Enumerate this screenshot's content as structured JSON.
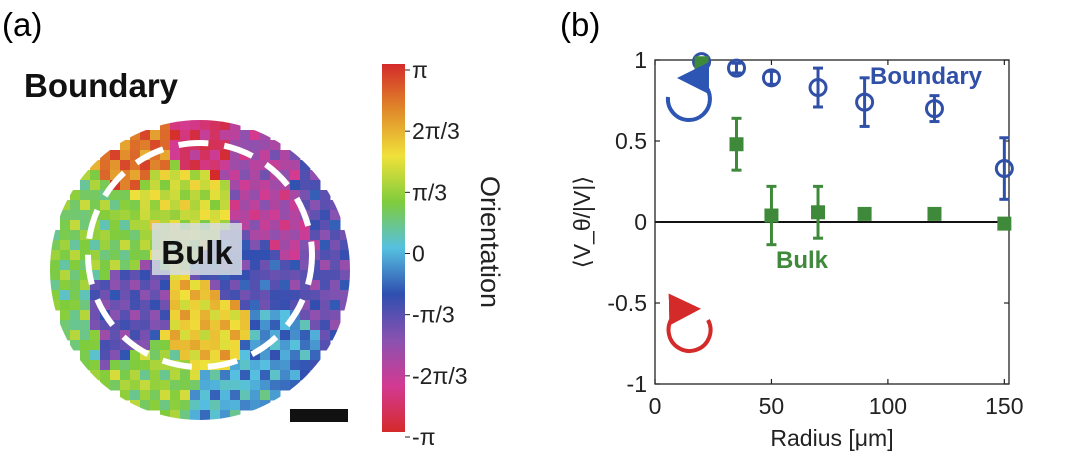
{
  "colors": {
    "boundary": "#3050a8",
    "bulk": "#3f8a3a",
    "zero_line": "#111111",
    "scale_bar": "#111111",
    "ccw_arrow": "#2c55b4",
    "cw_arrow": "#d42a2a",
    "dashed_circle": "#ffffff",
    "colormap_stops": [
      "#d42a2a",
      "#e08a2a",
      "#f0e13a",
      "#7fcc3c",
      "#56c0e0",
      "#2f4fb0",
      "#8a52b0",
      "#d33a92",
      "#d42a2a"
    ]
  },
  "panel_a": {
    "label": "(a)",
    "boundary_label": "Boundary",
    "bulk_label": "Bulk",
    "colorbar": {
      "title": "Orientation",
      "ticks": [
        "π",
        "2π/3",
        "π/3",
        "0",
        "-π/3",
        "-2π/3",
        "-π"
      ]
    },
    "icons": [
      "dashed-circle",
      "scale-bar"
    ]
  },
  "chart_data": {
    "type": "scatter",
    "panel_label": "(b)",
    "xlabel": "Radius [μm]",
    "ylabel": "⟨V_θ/|V|⟩",
    "xlim": [
      0,
      152
    ],
    "ylim": [
      -1,
      1
    ],
    "xticks": [
      "0",
      "50",
      "100",
      "150"
    ],
    "yticks": [
      "-1",
      "-0.5",
      "0",
      "0.5",
      "1"
    ],
    "grid": false,
    "zero_line": true,
    "series": [
      {
        "name": "Boundary",
        "marker": "open-circle",
        "points": [
          {
            "x": 20,
            "y": 0.99,
            "err": 0.02
          },
          {
            "x": 35,
            "y": 0.95,
            "err": 0.03
          },
          {
            "x": 50,
            "y": 0.89,
            "err": 0.04
          },
          {
            "x": 70,
            "y": 0.83,
            "err": 0.12
          },
          {
            "x": 90,
            "y": 0.74,
            "err": 0.15
          },
          {
            "x": 120,
            "y": 0.7,
            "err": 0.08
          },
          {
            "x": 150,
            "y": 0.33,
            "err": 0.19
          }
        ]
      },
      {
        "name": "Bulk",
        "marker": "filled-square",
        "points": [
          {
            "x": 20,
            "y": 0.98,
            "err": 0.02
          },
          {
            "x": 35,
            "y": 0.48,
            "err": 0.16
          },
          {
            "x": 50,
            "y": 0.04,
            "err": 0.18
          },
          {
            "x": 70,
            "y": 0.06,
            "err": 0.16
          },
          {
            "x": 90,
            "y": 0.05,
            "err": 0.03
          },
          {
            "x": 120,
            "y": 0.05,
            "err": 0.02
          },
          {
            "x": 150,
            "y": -0.01,
            "err": 0.02
          }
        ]
      }
    ],
    "annotations": [
      {
        "text": "Boundary",
        "series": "Boundary"
      },
      {
        "text": "Bulk",
        "series": "Bulk"
      }
    ],
    "icons": [
      "counterclockwise-arrow-icon",
      "clockwise-arrow-icon"
    ]
  }
}
